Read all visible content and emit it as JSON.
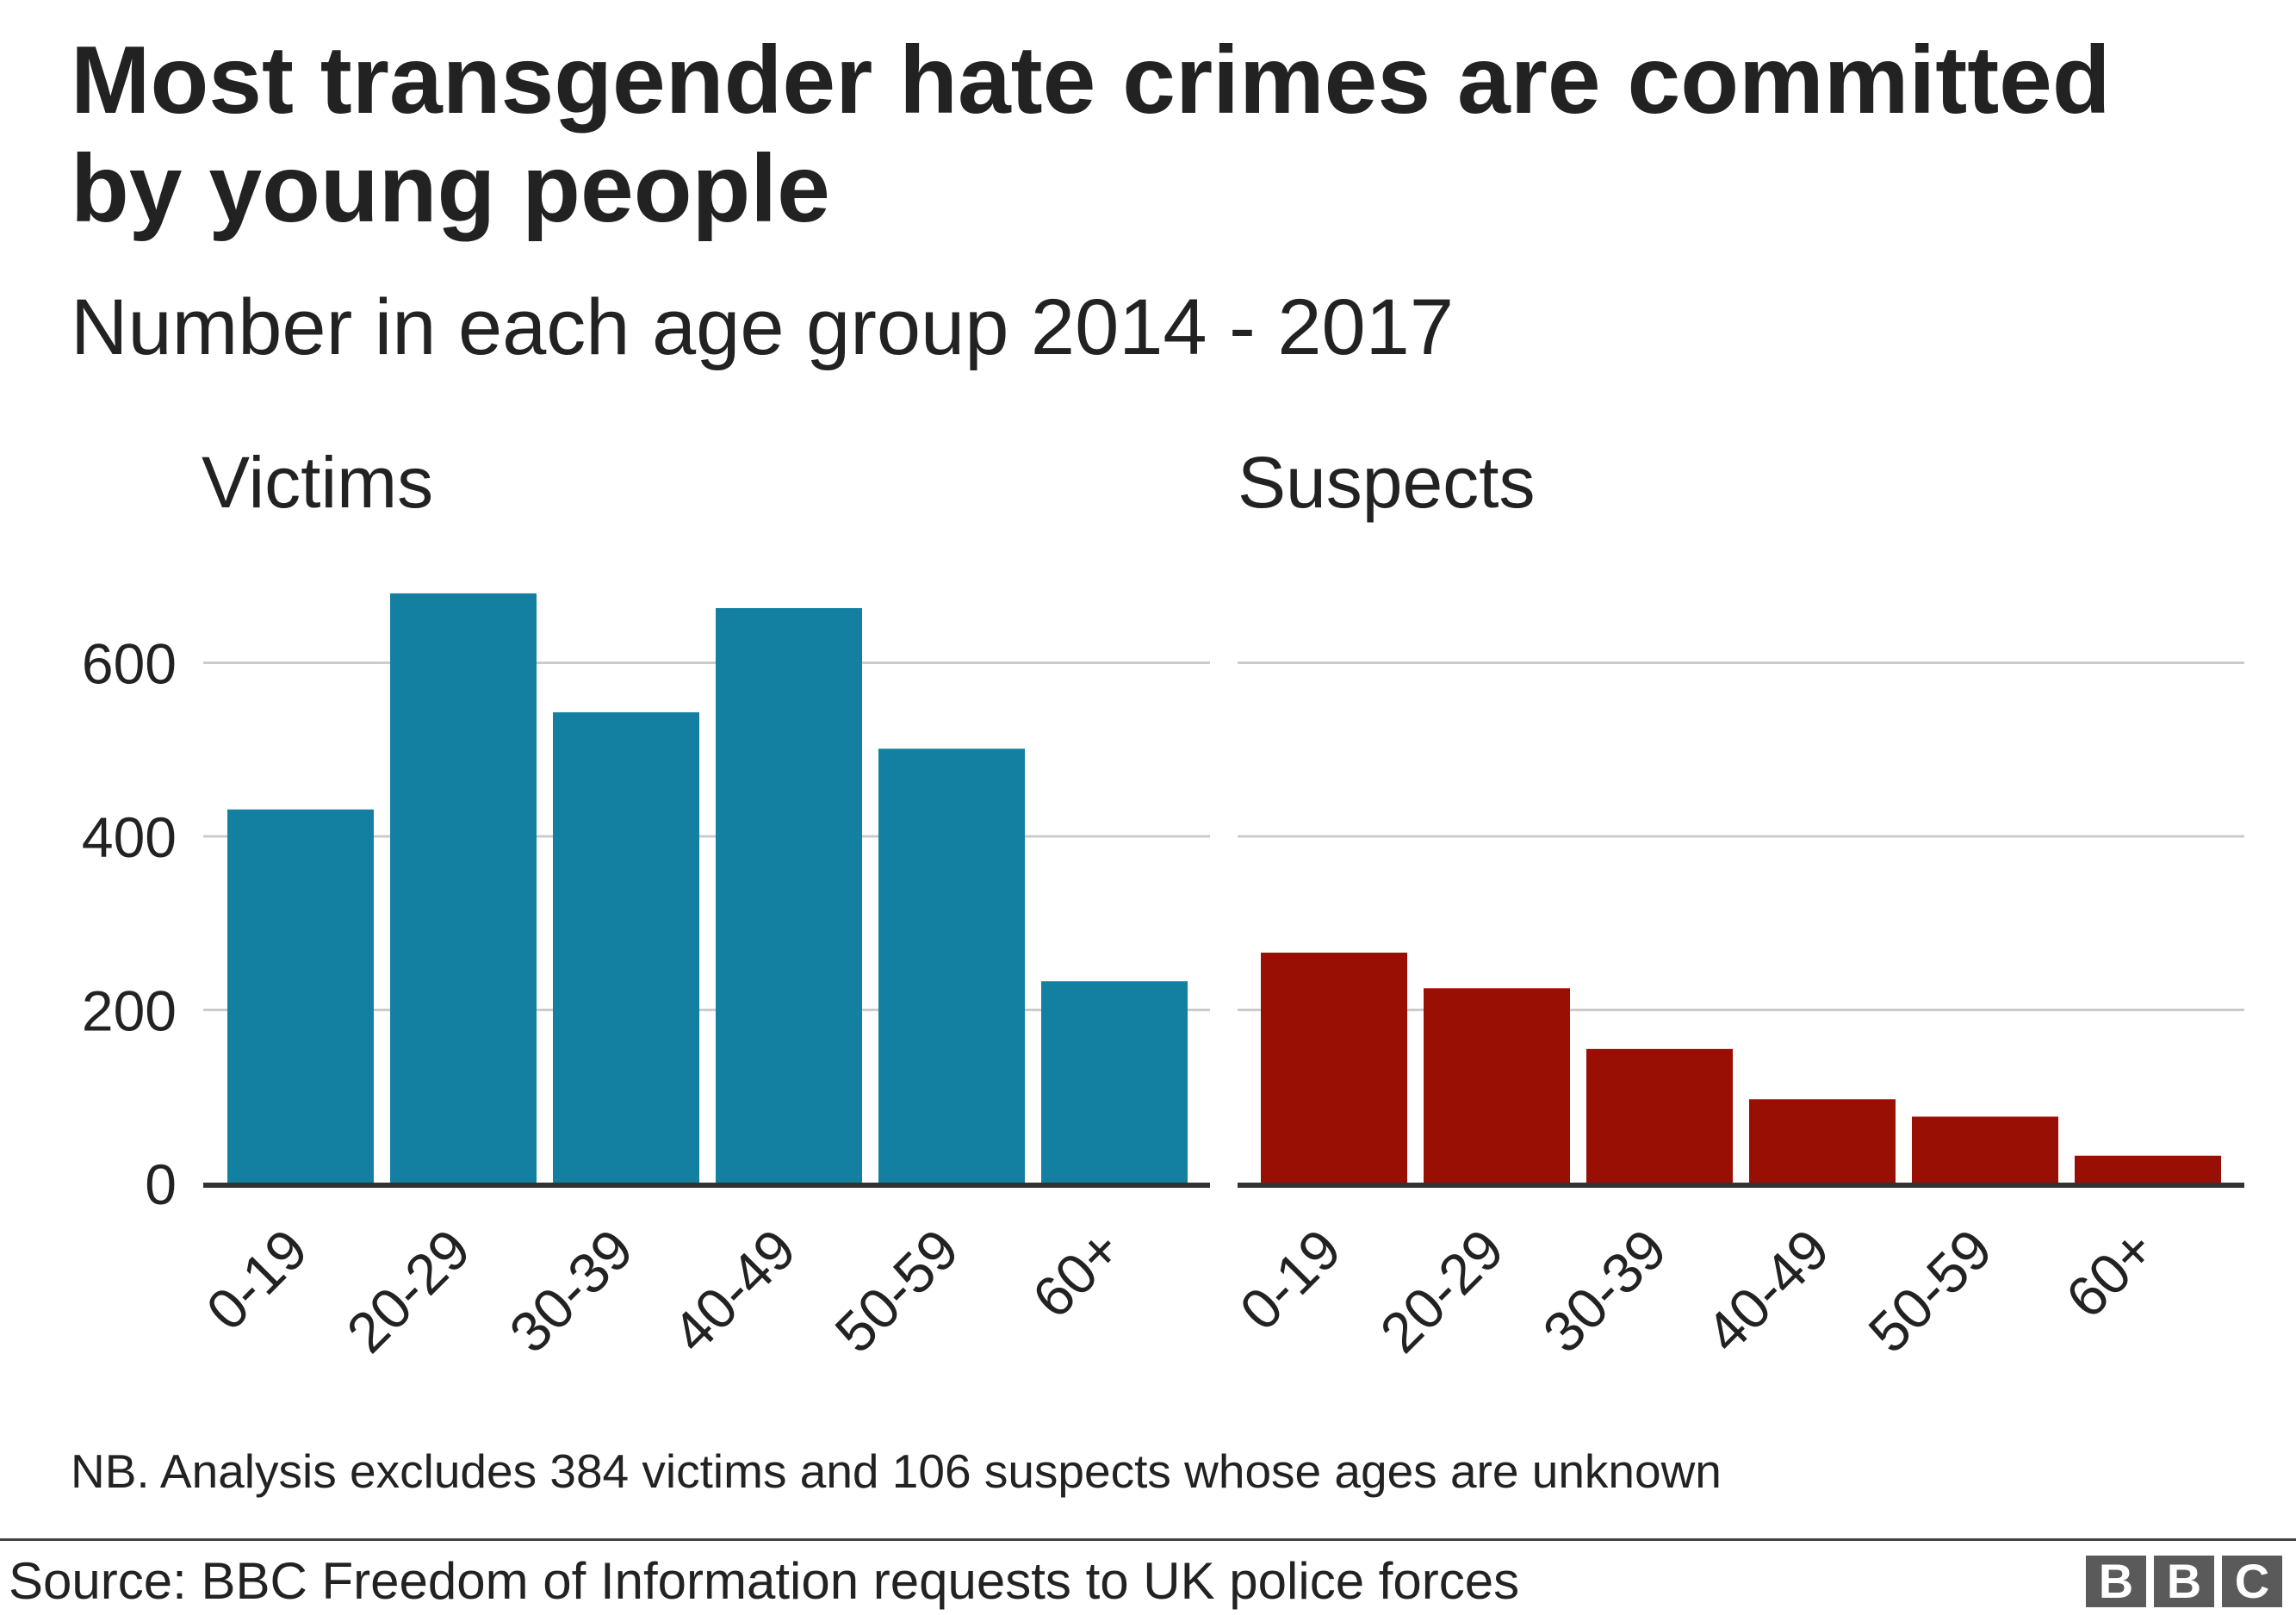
{
  "title": "Most transgender hate crimes are committed by young people",
  "subtitle": "Number in each age group 2014 - 2017",
  "chart_data": [
    {
      "type": "bar",
      "title": "Victims",
      "categories": [
        "0-19",
        "20-29",
        "30-39",
        "40-49",
        "50-59",
        "60+"
      ],
      "values": [
        431,
        680,
        543,
        663,
        501,
        233
      ],
      "ylim": [
        0,
        700
      ],
      "yticks": [
        0,
        200,
        400,
        600
      ],
      "color": "#1380a1",
      "grid": true
    },
    {
      "type": "bar",
      "title": "Suspects",
      "categories": [
        "0-19",
        "20-29",
        "30-39",
        "40-49",
        "50-59",
        "60+"
      ],
      "values": [
        266,
        225,
        155,
        97,
        77,
        32
      ],
      "ylim": [
        0,
        700
      ],
      "yticks": [
        0,
        200,
        400,
        600
      ],
      "color": "#990f04",
      "grid": true
    }
  ],
  "note": "NB. Analysis excludes 384 victims and 106 suspects whose ages are unknown",
  "source": "Source: BBC Freedom of Information requests to UK police forces",
  "logo": [
    "B",
    "B",
    "C"
  ],
  "colors": {
    "text": "#222222",
    "grid": "#cbcbcb",
    "axis": "#333333"
  }
}
